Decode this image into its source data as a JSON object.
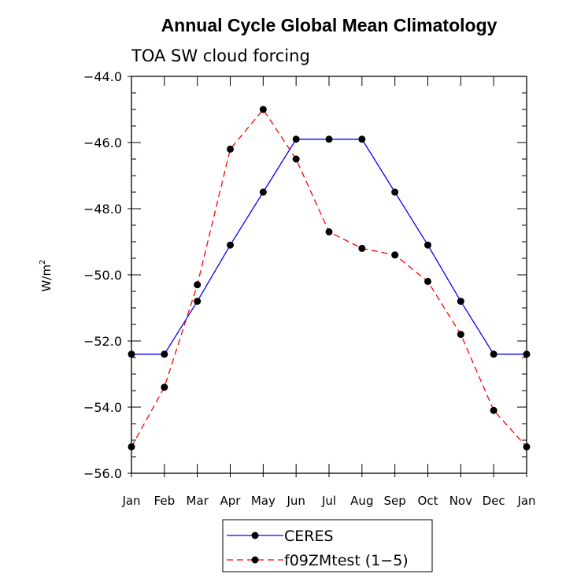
{
  "chart_data": {
    "type": "line",
    "title": "Annual Cycle Global Mean Climatology",
    "subtitle": "TOA SW cloud forcing",
    "ylabel_base": "W/m",
    "ylabel_sup": "2",
    "xlabel": "",
    "categories": [
      "Jan",
      "Feb",
      "Mar",
      "Apr",
      "May",
      "Jun",
      "Jul",
      "Aug",
      "Sep",
      "Oct",
      "Nov",
      "Dec",
      "Jan"
    ],
    "ylim": [
      -56.0,
      -44.0
    ],
    "yticks": [
      -44.0,
      -46.0,
      -48.0,
      -50.0,
      -52.0,
      -54.0,
      -56.0
    ],
    "ytick_labels": [
      "−44.0",
      "−46.0",
      "−48.0",
      "−50.0",
      "−52.0",
      "−54.0",
      "−56.0"
    ],
    "grid": false,
    "legend_position": "bottom",
    "series": [
      {
        "name": "CERES",
        "color": "#0000ff",
        "dashed": false,
        "values": [
          -52.4,
          -52.4,
          -50.8,
          -49.1,
          -47.5,
          -45.9,
          -45.9,
          -45.9,
          -47.5,
          -49.1,
          -50.8,
          -52.4,
          -52.4
        ]
      },
      {
        "name": "f09ZMtest (1−5)",
        "color": "#ff0000",
        "dashed": true,
        "values": [
          -55.2,
          -53.4,
          -50.3,
          -46.2,
          -45.0,
          -46.5,
          -48.7,
          -49.2,
          -49.4,
          -50.2,
          -51.8,
          -54.1,
          -55.2
        ]
      }
    ]
  }
}
